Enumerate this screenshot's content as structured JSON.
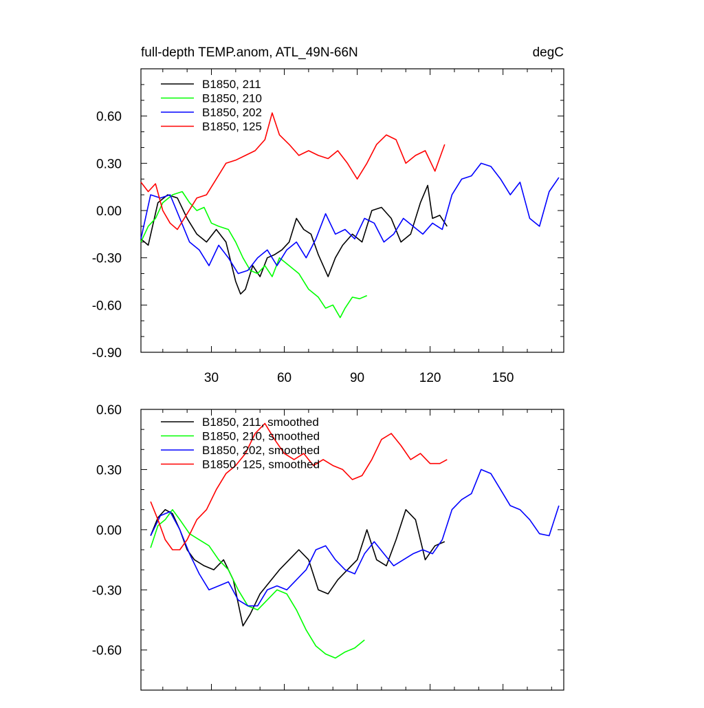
{
  "chart_data": [
    {
      "type": "line",
      "title": "full-depth TEMP.anom, ATL_49N-66N",
      "units": "degC",
      "xlabel": "",
      "ylabel": "",
      "xlim": [
        1,
        175
      ],
      "ylim": [
        -0.9,
        0.9
      ],
      "xticks": [
        30,
        60,
        90,
        120,
        150
      ],
      "xtick_labels": [
        "30",
        "60",
        "90",
        "120",
        "150"
      ],
      "yticks": [
        -0.9,
        -0.6,
        -0.3,
        0.0,
        0.3,
        0.6
      ],
      "ytick_labels": [
        "-0.90",
        "-0.60",
        "-0.30",
        "0.00",
        "0.30",
        "0.60"
      ],
      "legend_position": "top-left",
      "series": [
        {
          "name": "B1850, 211",
          "color": "#000000",
          "x": [
            1,
            4,
            8,
            12,
            16,
            20,
            24,
            28,
            32,
            36,
            40,
            42,
            44,
            47,
            50,
            53,
            56,
            59,
            62,
            65,
            68,
            71,
            74,
            78,
            81,
            84,
            88,
            92,
            96,
            100,
            104,
            108,
            112,
            116,
            119,
            121,
            124,
            127
          ],
          "y": [
            -0.18,
            -0.22,
            0.05,
            0.1,
            0.08,
            -0.05,
            -0.15,
            -0.2,
            -0.12,
            -0.2,
            -0.45,
            -0.53,
            -0.5,
            -0.35,
            -0.42,
            -0.3,
            -0.28,
            -0.25,
            -0.2,
            -0.05,
            -0.12,
            -0.15,
            -0.28,
            -0.42,
            -0.3,
            -0.22,
            -0.15,
            -0.2,
            0.0,
            0.02,
            -0.05,
            -0.2,
            -0.15,
            0.05,
            0.16,
            -0.05,
            -0.03,
            -0.1
          ]
        },
        {
          "name": "B1850, 210",
          "color": "#00ff00",
          "x": [
            1,
            4,
            7,
            10,
            14,
            18,
            21,
            24,
            27,
            30,
            33,
            37,
            40,
            43,
            46,
            49,
            52,
            55,
            58,
            62,
            66,
            70,
            74,
            77,
            80,
            83,
            85,
            88,
            91,
            94
          ],
          "y": [
            -0.2,
            -0.1,
            -0.05,
            0.05,
            0.1,
            0.12,
            0.05,
            0.0,
            0.02,
            -0.08,
            -0.1,
            -0.12,
            -0.2,
            -0.3,
            -0.38,
            -0.4,
            -0.35,
            -0.42,
            -0.3,
            -0.35,
            -0.4,
            -0.5,
            -0.55,
            -0.62,
            -0.6,
            -0.68,
            -0.62,
            -0.55,
            -0.56,
            -0.54
          ]
        },
        {
          "name": "B1850, 202",
          "color": "#0000ff",
          "x": [
            1,
            5,
            9,
            13,
            17,
            21,
            25,
            29,
            33,
            37,
            41,
            45,
            49,
            53,
            57,
            61,
            65,
            69,
            73,
            77,
            81,
            85,
            89,
            93,
            97,
            101,
            105,
            109,
            113,
            117,
            121,
            125,
            129,
            133,
            137,
            141,
            145,
            149,
            153,
            157,
            161,
            165,
            169,
            173
          ],
          "y": [
            -0.18,
            0.1,
            0.08,
            0.1,
            -0.05,
            -0.2,
            -0.25,
            -0.35,
            -0.22,
            -0.3,
            -0.4,
            -0.38,
            -0.3,
            -0.25,
            -0.35,
            -0.25,
            -0.2,
            -0.3,
            -0.18,
            -0.02,
            -0.15,
            -0.12,
            -0.18,
            -0.05,
            -0.08,
            -0.2,
            -0.15,
            -0.05,
            -0.1,
            -0.15,
            -0.08,
            -0.12,
            0.1,
            0.2,
            0.22,
            0.3,
            0.28,
            0.2,
            0.1,
            0.18,
            -0.05,
            -0.1,
            0.12,
            0.21
          ]
        },
        {
          "name": "B1850, 125",
          "color": "#ff0000",
          "x": [
            1,
            4,
            7,
            10,
            13,
            16,
            20,
            24,
            28,
            32,
            36,
            40,
            44,
            48,
            52,
            55,
            58,
            62,
            66,
            70,
            74,
            78,
            82,
            86,
            90,
            94,
            98,
            102,
            106,
            110,
            114,
            118,
            122,
            126
          ],
          "y": [
            0.18,
            0.12,
            0.17,
            0.0,
            -0.08,
            -0.12,
            -0.02,
            0.08,
            0.1,
            0.2,
            0.3,
            0.32,
            0.35,
            0.38,
            0.45,
            0.62,
            0.48,
            0.42,
            0.35,
            0.38,
            0.35,
            0.33,
            0.38,
            0.3,
            0.2,
            0.3,
            0.42,
            0.48,
            0.45,
            0.3,
            0.35,
            0.38,
            0.25,
            0.42
          ]
        }
      ]
    },
    {
      "type": "line",
      "title": "",
      "xlabel": "",
      "ylabel": "",
      "xlim": [
        1,
        175
      ],
      "ylim": [
        -0.8,
        0.6
      ],
      "xticks": [
        30,
        60,
        90,
        120,
        150
      ],
      "yticks": [
        -0.6,
        -0.3,
        0.0,
        0.3,
        0.6
      ],
      "ytick_labels": [
        "-0.60",
        "-0.30",
        "0.00",
        "0.30",
        "0.60"
      ],
      "legend_position": "top-left",
      "series": [
        {
          "name": "B1850, 211, smoothed",
          "color": "#000000",
          "x": [
            5,
            8,
            11,
            14,
            17,
            20,
            23,
            27,
            31,
            35,
            39,
            43,
            46,
            50,
            54,
            58,
            62,
            66,
            70,
            74,
            78,
            82,
            86,
            90,
            94,
            98,
            102,
            106,
            110,
            114,
            118,
            122,
            126
          ],
          "y": [
            -0.03,
            0.06,
            0.1,
            0.08,
            0.0,
            -0.1,
            -0.15,
            -0.18,
            -0.2,
            -0.15,
            -0.25,
            -0.48,
            -0.42,
            -0.32,
            -0.26,
            -0.2,
            -0.15,
            -0.1,
            -0.15,
            -0.3,
            -0.32,
            -0.25,
            -0.2,
            -0.15,
            0.0,
            -0.15,
            -0.18,
            -0.05,
            0.1,
            0.05,
            -0.15,
            -0.08,
            -0.06
          ]
        },
        {
          "name": "B1850, 210, smoothed",
          "color": "#00ff00",
          "x": [
            5,
            8,
            11,
            14,
            17,
            21,
            25,
            29,
            33,
            37,
            41,
            45,
            49,
            53,
            57,
            61,
            65,
            69,
            73,
            77,
            81,
            85,
            89,
            93
          ],
          "y": [
            -0.09,
            0.02,
            0.05,
            0.1,
            0.05,
            -0.02,
            -0.05,
            -0.08,
            -0.15,
            -0.2,
            -0.3,
            -0.38,
            -0.4,
            -0.35,
            -0.3,
            -0.32,
            -0.4,
            -0.5,
            -0.58,
            -0.62,
            -0.64,
            -0.61,
            -0.59,
            -0.55
          ]
        },
        {
          "name": "B1850, 202, smoothed",
          "color": "#0000ff",
          "x": [
            5,
            9,
            13,
            17,
            21,
            25,
            29,
            33,
            37,
            41,
            45,
            49,
            53,
            57,
            61,
            65,
            69,
            73,
            77,
            81,
            85,
            89,
            93,
            97,
            101,
            105,
            109,
            113,
            117,
            121,
            125,
            129,
            133,
            137,
            141,
            145,
            149,
            153,
            157,
            161,
            165,
            169,
            173
          ],
          "y": [
            -0.03,
            0.07,
            0.09,
            0.0,
            -0.12,
            -0.22,
            -0.3,
            -0.28,
            -0.26,
            -0.35,
            -0.38,
            -0.38,
            -0.3,
            -0.28,
            -0.3,
            -0.25,
            -0.2,
            -0.1,
            -0.08,
            -0.15,
            -0.2,
            -0.22,
            -0.12,
            -0.06,
            -0.12,
            -0.18,
            -0.15,
            -0.12,
            -0.1,
            -0.12,
            -0.05,
            0.1,
            0.15,
            0.18,
            0.3,
            0.28,
            0.2,
            0.12,
            0.1,
            0.05,
            -0.02,
            -0.03,
            0.12
          ]
        },
        {
          "name": "B1850, 125, smoothed",
          "color": "#ff0000",
          "x": [
            5,
            8,
            11,
            14,
            17,
            20,
            24,
            28,
            32,
            36,
            40,
            44,
            48,
            52,
            56,
            60,
            64,
            68,
            72,
            76,
            80,
            84,
            88,
            92,
            96,
            100,
            104,
            108,
            112,
            116,
            120,
            124,
            127
          ],
          "y": [
            0.14,
            0.05,
            -0.05,
            -0.1,
            -0.1,
            -0.05,
            0.05,
            0.1,
            0.2,
            0.28,
            0.32,
            0.38,
            0.48,
            0.53,
            0.45,
            0.38,
            0.35,
            0.38,
            0.32,
            0.35,
            0.32,
            0.3,
            0.25,
            0.27,
            0.35,
            0.45,
            0.48,
            0.42,
            0.35,
            0.38,
            0.33,
            0.33,
            0.35
          ]
        }
      ]
    }
  ]
}
